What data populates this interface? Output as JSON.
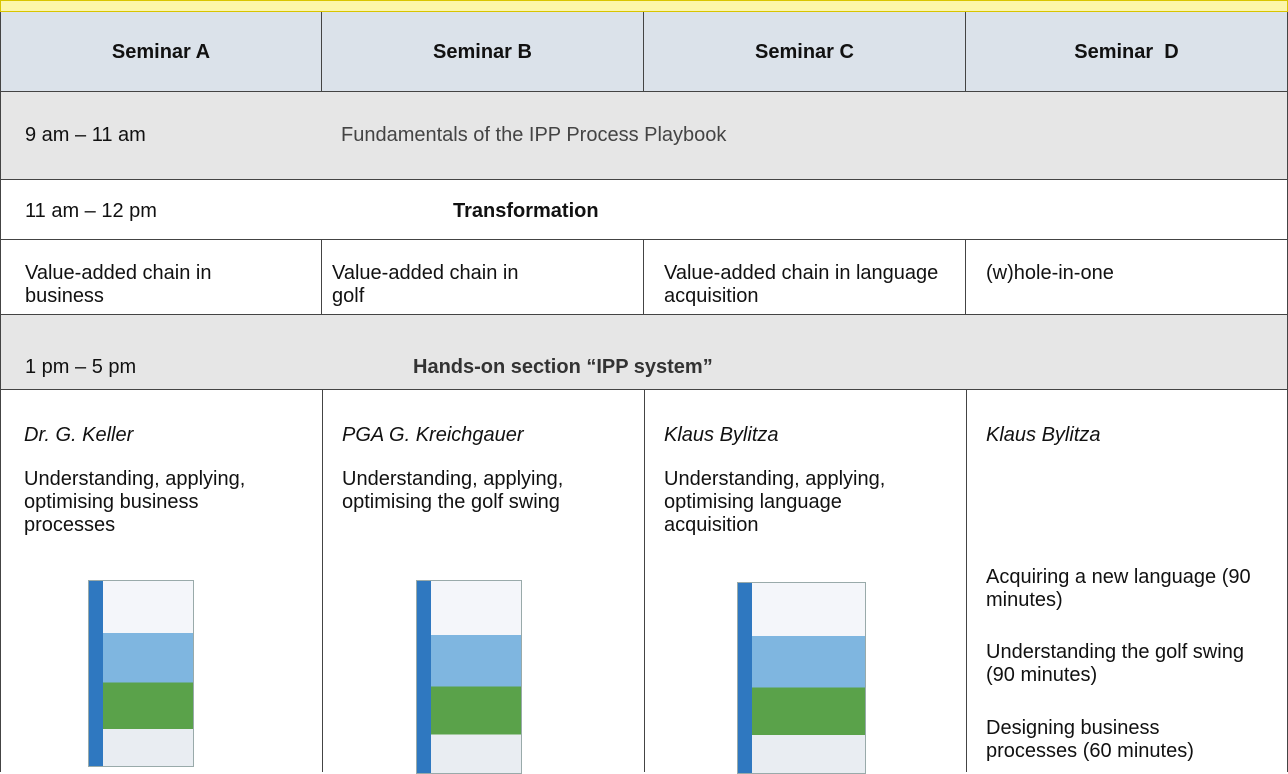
{
  "header": {
    "columns": [
      "Seminar A",
      "Seminar B",
      "Seminar C",
      "Seminar  D"
    ]
  },
  "sessions": [
    {
      "time": "9 am – 11 am",
      "title": "Fundamentals of the IPP Process Playbook"
    },
    {
      "time": "11 am – 12 pm",
      "title": "Transformation"
    },
    {
      "time": "1 pm – 5 pm",
      "title": "Hands-on section “IPP system”"
    }
  ],
  "chains": [
    "Value-added chain in business",
    "Value-added chain in golf",
    "Value-added chain in language acquisition",
    "(w)hole-in-one"
  ],
  "details": [
    {
      "speaker": "Dr. G. Keller",
      "items": [
        "Understanding, applying, optimising business processes"
      ]
    },
    {
      "speaker": "PGA G. Kreichgauer",
      "items": [
        "Understanding, applying, optimising the golf swing"
      ]
    },
    {
      "speaker": "Klaus Bylitza",
      "items": [
        "Understanding, applying, optimising language acquisition"
      ]
    },
    {
      "speaker": "Klaus Bylitza",
      "items": [
        "Acquiring a new language (90 minutes)",
        "Understanding the golf swing (90 minutes)",
        "Designing business processes (60 minutes)"
      ]
    }
  ]
}
